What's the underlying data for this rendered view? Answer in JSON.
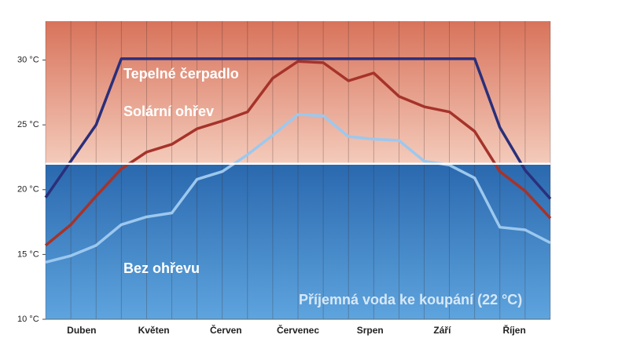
{
  "chart_data": {
    "type": "line",
    "x": [
      0,
      1,
      2,
      3,
      4,
      5,
      6,
      7,
      8,
      9,
      10,
      11,
      12,
      13,
      14,
      15,
      16,
      17,
      18,
      19,
      20
    ],
    "xlim": [
      0,
      20
    ],
    "categories": [
      "Duben",
      "Květen",
      "Červen",
      "Červenec",
      "Srpen",
      "Září",
      "Říjen"
    ],
    "ylim": [
      10,
      33
    ],
    "yticks": [
      {
        "value": 10,
        "label": "10 °C"
      },
      {
        "value": 15,
        "label": "15 °C"
      },
      {
        "value": 20,
        "label": "20 °C"
      },
      {
        "value": 25,
        "label": "25 °C"
      },
      {
        "value": 30,
        "label": "30 °C"
      }
    ],
    "grid": true,
    "threshold": {
      "value": 22,
      "label": "Příjemná voda ke koupání (22 °C)"
    },
    "series": [
      {
        "name": "Tepelné čerpadlo",
        "color": "#2b2f7a",
        "values": [
          19.4,
          22.2,
          25.0,
          30.1,
          30.1,
          30.1,
          30.1,
          30.1,
          30.1,
          30.1,
          30.1,
          30.1,
          30.1,
          30.1,
          30.1,
          30.1,
          30.1,
          30.1,
          24.8,
          21.5,
          19.3
        ]
      },
      {
        "name": "Solární ohřev",
        "color": "#a6332a",
        "values": [
          15.7,
          17.3,
          19.5,
          21.6,
          22.9,
          23.5,
          24.7,
          25.3,
          26.0,
          28.6,
          29.9,
          29.8,
          28.4,
          29.0,
          27.2,
          26.4,
          26.0,
          24.5,
          21.4,
          19.9,
          17.8
        ]
      },
      {
        "name": "Bez ohřevu",
        "color": "#9cc8ee",
        "values": [
          14.4,
          14.9,
          15.7,
          17.3,
          17.9,
          18.2,
          20.8,
          21.4,
          22.7,
          24.2,
          25.8,
          25.7,
          24.1,
          23.9,
          23.8,
          22.2,
          21.9,
          20.9,
          17.1,
          16.9,
          15.9
        ]
      }
    ]
  }
}
